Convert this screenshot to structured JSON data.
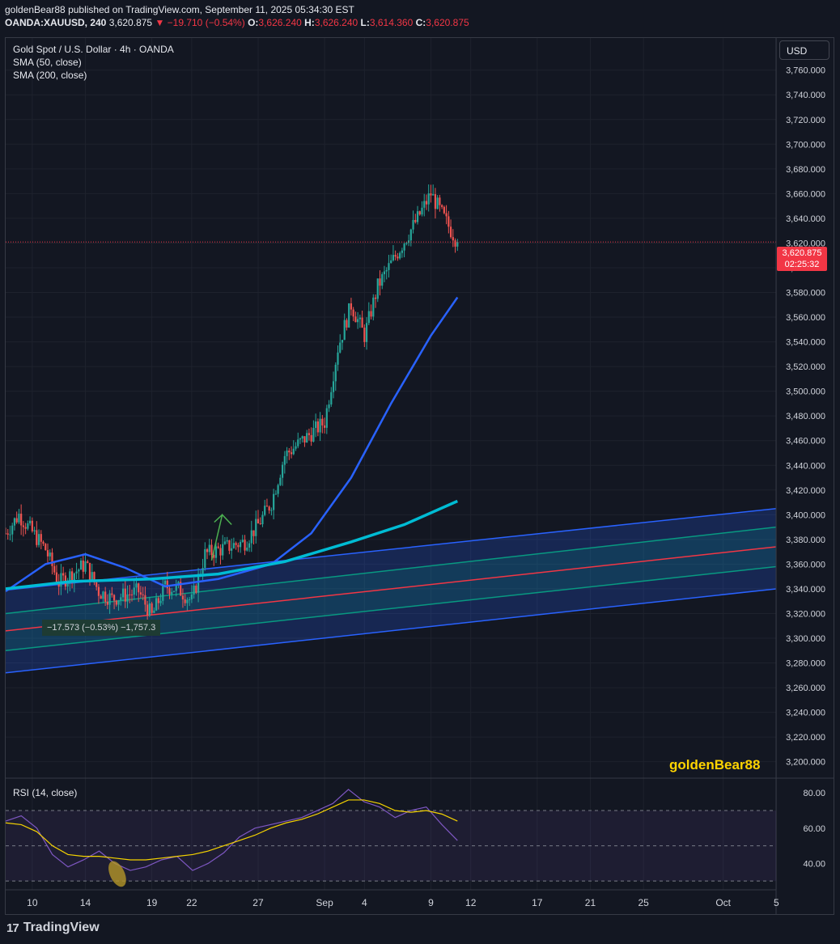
{
  "header": {
    "line1": "goldenBear88 published on TradingView.com, September 11, 2025 05:34:30 EST",
    "symbol": "OANDA:XAUUSD, 240",
    "last": "3,620.875",
    "change": "▼ −19.710 (−0.54%)",
    "o_label": "O:",
    "o_val": "3,626.240",
    "h_label": "H:",
    "h_val": "3,626.240",
    "l_label": "L:",
    "l_val": "3,614.360",
    "c_label": "C:",
    "c_val": "3,620.875"
  },
  "legend": {
    "title": "Gold Spot / U.S. Dollar · 4h · OANDA",
    "sma50": "SMA (50, close)",
    "sma200": "SMA (200, close)"
  },
  "currency_button": "USD",
  "price_tag": {
    "price": "3,620.875",
    "countdown": "02:25:32"
  },
  "watermark": "goldenBear88",
  "measure_label": "−17.573 (−0.53%) −1,757.3",
  "rsi": {
    "label": "RSI (14, close)"
  },
  "brand": {
    "name": "TradingView",
    "icon": "tradingview-logo-icon"
  },
  "colors": {
    "background": "#131722",
    "up": "#26a69a",
    "down": "#ef5350",
    "sma50": "#2962ff",
    "sma200": "#00bcd4",
    "channel_outer": "#2962ff",
    "channel_inner": "#089981",
    "channel_mid": "#f23645",
    "rsi": "#7e57c2",
    "rsi_ma": "#f5d300",
    "watermark": "#ffd400"
  },
  "chart_data": [
    {
      "type": "candlestick",
      "title": "Gold Spot / U.S. Dollar · 4h · OANDA",
      "x_ticks": [
        "10",
        "14",
        "19",
        "22",
        "27",
        "Sep",
        "4",
        "9",
        "12",
        "17",
        "21",
        "25",
        "Oct",
        "5"
      ],
      "y_ticks": [
        "3,200.000",
        "3,220.000",
        "3,240.000",
        "3,260.000",
        "3,280.000",
        "3,300.000",
        "3,320.000",
        "3,340.000",
        "3,360.000",
        "3,380.000",
        "3,400.000",
        "3,420.000",
        "3,440.000",
        "3,460.000",
        "3,480.000",
        "3,500.000",
        "3,520.000",
        "3,540.000",
        "3,560.000",
        "3,580.000",
        "3,600.000",
        "3,620.000",
        "3,640.000",
        "3,660.000",
        "3,680.000",
        "3,700.000",
        "3,720.000",
        "3,740.000",
        "3,760.000"
      ],
      "ylim": [
        3188,
        3786
      ],
      "close_path": [
        {
          "x": "Aug 8",
          "y": 3385
        },
        {
          "x": "Aug 9",
          "y": 3400
        },
        {
          "x": "Aug 11",
          "y": 3372
        },
        {
          "x": "Aug 12",
          "y": 3345
        },
        {
          "x": "Aug 13",
          "y": 3352
        },
        {
          "x": "Aug 14",
          "y": 3360
        },
        {
          "x": "Aug 15",
          "y": 3338
        },
        {
          "x": "Aug 16",
          "y": 3332
        },
        {
          "x": "Aug 18",
          "y": 3338
        },
        {
          "x": "Aug 19",
          "y": 3318
        },
        {
          "x": "Aug 20",
          "y": 3342
        },
        {
          "x": "Aug 21",
          "y": 3340
        },
        {
          "x": "Aug 22",
          "y": 3330
        },
        {
          "x": "Aug 23",
          "y": 3368
        },
        {
          "x": "Aug 25",
          "y": 3375
        },
        {
          "x": "Aug 26",
          "y": 3378
        },
        {
          "x": "Aug 27",
          "y": 3392
        },
        {
          "x": "Aug 28",
          "y": 3410
        },
        {
          "x": "Aug 29",
          "y": 3448
        },
        {
          "x": "Sep 1",
          "y": 3475
        },
        {
          "x": "Sep 2",
          "y": 3535
        },
        {
          "x": "Sep 3",
          "y": 3570
        },
        {
          "x": "Sep 4",
          "y": 3545
        },
        {
          "x": "Sep 5",
          "y": 3585
        },
        {
          "x": "Sep 8",
          "y": 3640
        },
        {
          "x": "Sep 9",
          "y": 3660
        },
        {
          "x": "Sep 10",
          "y": 3640
        },
        {
          "x": "Sep 11",
          "y": 3620.875
        }
      ],
      "sma50": [
        {
          "x": "Aug 8",
          "y": 3338
        },
        {
          "x": "Aug 11",
          "y": 3360
        },
        {
          "x": "Aug 14",
          "y": 3368
        },
        {
          "x": "Aug 17",
          "y": 3357
        },
        {
          "x": "Aug 20",
          "y": 3342
        },
        {
          "x": "Aug 24",
          "y": 3348
        },
        {
          "x": "Aug 28",
          "y": 3360
        },
        {
          "x": "Aug 31",
          "y": 3385
        },
        {
          "x": "Sep 3",
          "y": 3430
        },
        {
          "x": "Sep 6",
          "y": 3490
        },
        {
          "x": "Sep 9",
          "y": 3545
        },
        {
          "x": "Sep 11",
          "y": 3576
        }
      ],
      "sma200": [
        {
          "x": "Aug 8",
          "y": 3340
        },
        {
          "x": "Aug 13",
          "y": 3346
        },
        {
          "x": "Aug 19",
          "y": 3348
        },
        {
          "x": "Aug 24",
          "y": 3352
        },
        {
          "x": "Aug 29",
          "y": 3362
        },
        {
          "x": "Sep 3",
          "y": 3378
        },
        {
          "x": "Sep 7",
          "y": 3392
        },
        {
          "x": "Sep 11",
          "y": 3411
        }
      ],
      "channel": {
        "upper_outer": [
          3339,
          3405
        ],
        "upper_inner": [
          3320,
          3390
        ],
        "middle": [
          3306,
          3374
        ],
        "lower_inner": [
          3290,
          3358
        ],
        "lower_outer": [
          3272,
          3340
        ]
      },
      "last_price": 3620.875
    },
    {
      "type": "line",
      "title": "RSI (14, close)",
      "y_ticks": [
        "40.00",
        "60.00",
        "80.00"
      ],
      "ylim": [
        25,
        87
      ],
      "bands": [
        70,
        30
      ],
      "series": [
        {
          "values": [
            64,
            67,
            60,
            45,
            38,
            42,
            47,
            40,
            36,
            38,
            42,
            44,
            36,
            40,
            46,
            55,
            60,
            62,
            64,
            66,
            70,
            74,
            82,
            75,
            72,
            66,
            70,
            72,
            62,
            53
          ]
        },
        {
          "values": [
            63,
            62,
            58,
            50,
            45,
            44,
            44,
            43,
            42,
            42,
            43,
            44,
            45,
            47,
            50,
            53,
            56,
            60,
            63,
            65,
            68,
            72,
            76,
            76,
            74,
            70,
            69,
            70,
            68,
            64
          ]
        }
      ]
    }
  ]
}
